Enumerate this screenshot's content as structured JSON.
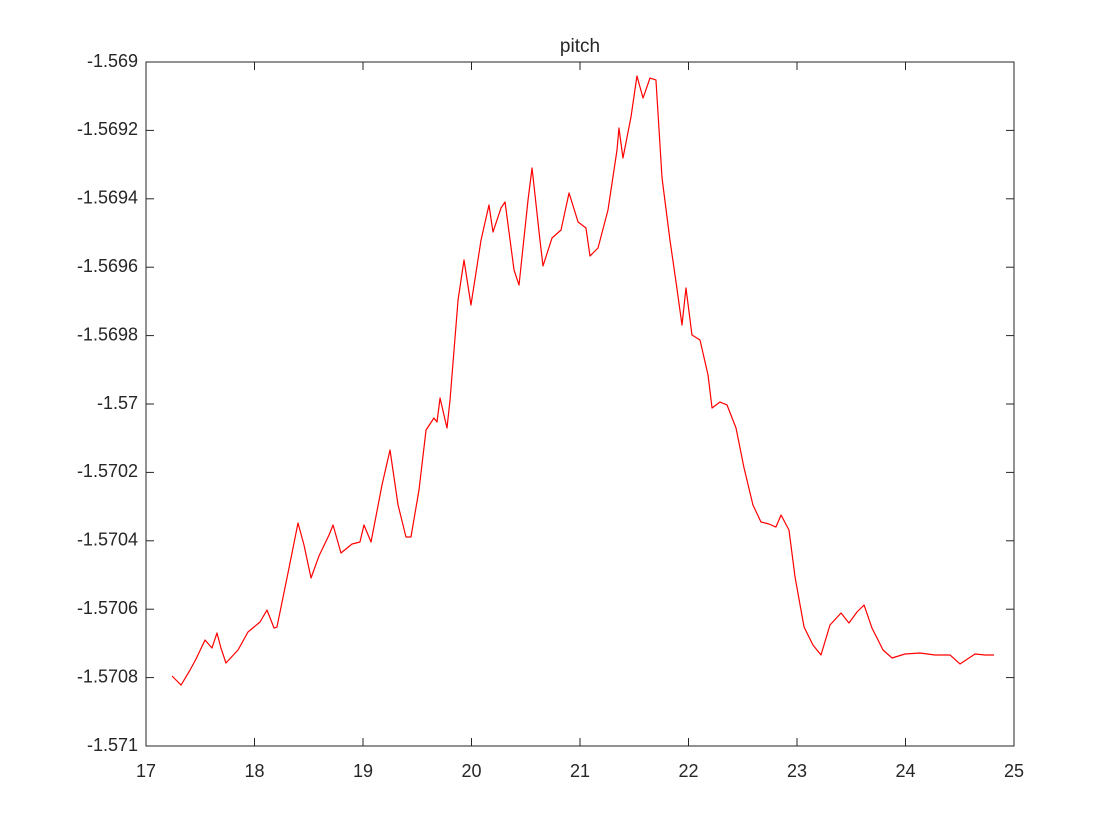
{
  "chart_data": {
    "type": "line",
    "title": "pitch",
    "x": [
      17.24,
      17.323,
      17.406,
      17.461,
      17.544,
      17.608,
      17.654,
      17.691,
      17.737,
      17.848,
      17.94,
      18.051,
      18.115,
      18.18,
      18.207,
      18.318,
      18.401,
      18.456,
      18.521,
      18.594,
      18.687,
      18.724,
      18.797,
      18.899,
      18.972,
      19.009,
      19.074,
      19.175,
      19.249,
      19.323,
      19.396,
      19.442,
      19.516,
      19.581,
      19.654,
      19.682,
      19.71,
      19.774,
      19.802,
      19.876,
      19.931,
      19.995,
      20.088,
      20.161,
      20.198,
      20.272,
      20.309,
      20.392,
      20.438,
      20.521,
      20.558,
      20.631,
      20.659,
      20.742,
      20.825,
      20.899,
      20.982,
      21.055,
      21.092,
      21.166,
      21.258,
      21.341,
      21.359,
      21.396,
      21.47,
      21.525,
      21.581,
      21.645,
      21.7,
      21.756,
      21.829,
      21.885,
      21.94,
      21.977,
      22.032,
      22.106,
      22.18,
      22.217,
      22.29,
      22.355,
      22.438,
      22.512,
      22.594,
      22.668,
      22.742,
      22.806,
      22.853,
      22.926,
      22.982,
      23.065,
      23.147,
      23.221,
      23.304,
      23.406,
      23.479,
      23.553,
      23.618,
      23.691,
      23.793,
      23.876,
      23.995,
      24.134,
      24.272,
      24.41,
      24.502,
      24.641,
      24.733,
      24.816
    ],
    "values": [
      -1.5707953,
      -1.5708217,
      -1.5707778,
      -1.5707456,
      -1.5706901,
      -1.5707135,
      -1.5706696,
      -1.5707135,
      -1.5707573,
      -1.5707193,
      -1.5706667,
      -1.5706374,
      -1.5706024,
      -1.570655,
      -1.5706521,
      -1.5704795,
      -1.570348,
      -1.5704123,
      -1.5705088,
      -1.5704445,
      -1.5703831,
      -1.5703538,
      -1.5704357,
      -1.5704094,
      -1.5704035,
      -1.5703538,
      -1.5704035,
      -1.5702369,
      -1.5701345,
      -1.5702953,
      -1.5703889,
      -1.5703889,
      -1.5702515,
      -1.570076,
      -1.5700409,
      -1.5700526,
      -1.5699825,
      -1.5700702,
      -1.5699883,
      -1.5696959,
      -1.569579,
      -1.5697105,
      -1.5695205,
      -1.5694181,
      -1.5694971,
      -1.5694269,
      -1.5694094,
      -1.5696082,
      -1.5696521,
      -1.5694035,
      -1.5693099,
      -1.5695205,
      -1.5695965,
      -1.5695146,
      -1.5694912,
      -1.569383,
      -1.5694678,
      -1.5694854,
      -1.5695673,
      -1.5695439,
      -1.5694328,
      -1.5692573,
      -1.569193,
      -1.5692807,
      -1.5691608,
      -1.5690409,
      -1.5691053,
      -1.5690468,
      -1.5690526,
      -1.5693392,
      -1.5695205,
      -1.5696433,
      -1.569769,
      -1.5696608,
      -1.5697983,
      -1.5698129,
      -1.5699152,
      -1.5700117,
      -1.5699942,
      -1.5700029,
      -1.5700702,
      -1.5701871,
      -1.5702953,
      -1.570345,
      -1.5703509,
      -1.5703597,
      -1.5703246,
      -1.5703684,
      -1.5705059,
      -1.5706521,
      -1.5707047,
      -1.5707339,
      -1.5706462,
      -1.5706111,
      -1.5706404,
      -1.5706082,
      -1.5705877,
      -1.570655,
      -1.5707193,
      -1.5707427,
      -1.570731,
      -1.5707281,
      -1.5707339,
      -1.5707339,
      -1.5707602,
      -1.570731,
      -1.5707339,
      -1.5707339
    ],
    "color": "#ff0000",
    "xlim": [
      17,
      25
    ],
    "xticks": [
      17,
      18,
      19,
      20,
      21,
      22,
      23,
      24,
      25
    ],
    "ylim": [
      -1.571,
      -1.569
    ],
    "yticks": [
      -1.571,
      -1.5708,
      -1.5706,
      -1.5704,
      -1.5702,
      -1.57,
      -1.5698,
      -1.5696,
      -1.5694,
      -1.5692,
      -1.569
    ],
    "grid": false
  }
}
